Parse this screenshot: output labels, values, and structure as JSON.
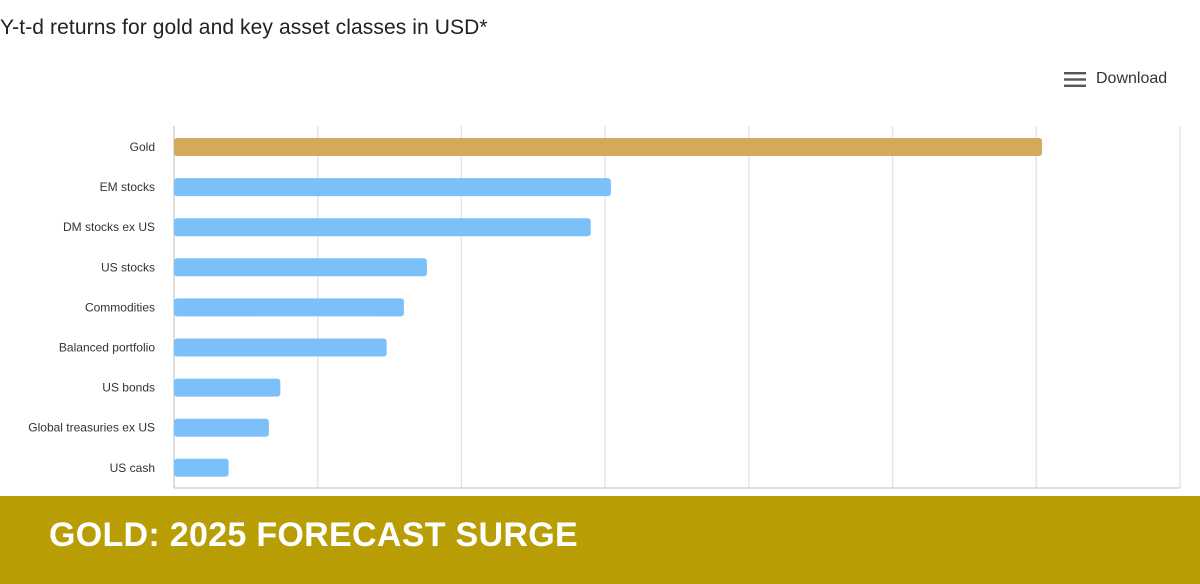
{
  "chart_data": {
    "type": "bar",
    "orientation": "horizontal",
    "title": "Y-t-d returns for gold and key asset classes in USD*",
    "categories": [
      "Gold",
      "EM stocks",
      "DM stocks ex US",
      "US stocks",
      "Commodities",
      "Balanced portfolio",
      "US bonds",
      "Global treasuries ex US",
      "US cash"
    ],
    "values": [
      30.2,
      15.2,
      14.5,
      8.8,
      8.0,
      7.4,
      3.7,
      3.3,
      1.9
    ],
    "xlim": [
      0,
      35
    ],
    "grid": true,
    "colors": {
      "highlight": "#d3a95c",
      "default": "#7cc0fa"
    }
  },
  "toolbar": {
    "download_label": "Download",
    "download_icon": "menu-icon"
  },
  "banner": {
    "text": "GOLD: 2025 FORECAST SURGE",
    "color": "#b89d05"
  }
}
